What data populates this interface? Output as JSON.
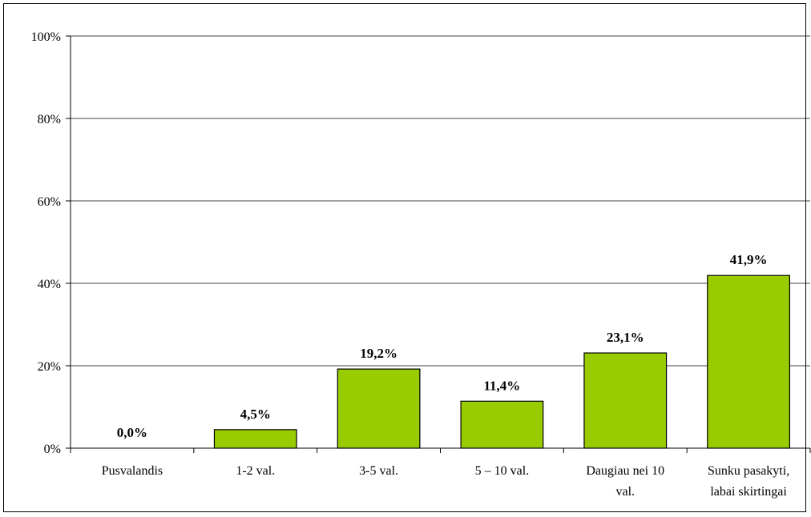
{
  "chart_data": {
    "type": "bar",
    "categories": [
      [
        "Pusvalandis"
      ],
      [
        "1-2 val."
      ],
      [
        "3-5 val."
      ],
      [
        "5 – 10 val."
      ],
      [
        "Daugiau nei 10",
        "val."
      ],
      [
        "Sunku pasakyti,",
        "labai skirtingai"
      ]
    ],
    "values": [
      0.0,
      4.5,
      19.2,
      11.4,
      23.1,
      41.9
    ],
    "data_labels": [
      "0,0%",
      "4,5%",
      "19,2%",
      "11,4%",
      "23,1%",
      "41,9%"
    ],
    "y_ticks": [
      "0%",
      "20%",
      "40%",
      "60%",
      "80%",
      "100%"
    ],
    "y_tick_values": [
      0,
      20,
      40,
      60,
      80,
      100
    ],
    "ylim": [
      0,
      100
    ],
    "grid": true,
    "legend": false,
    "bar_color": "#99cc00",
    "bar_border_color": "#000000",
    "title": "",
    "xlabel": "",
    "ylabel": ""
  }
}
